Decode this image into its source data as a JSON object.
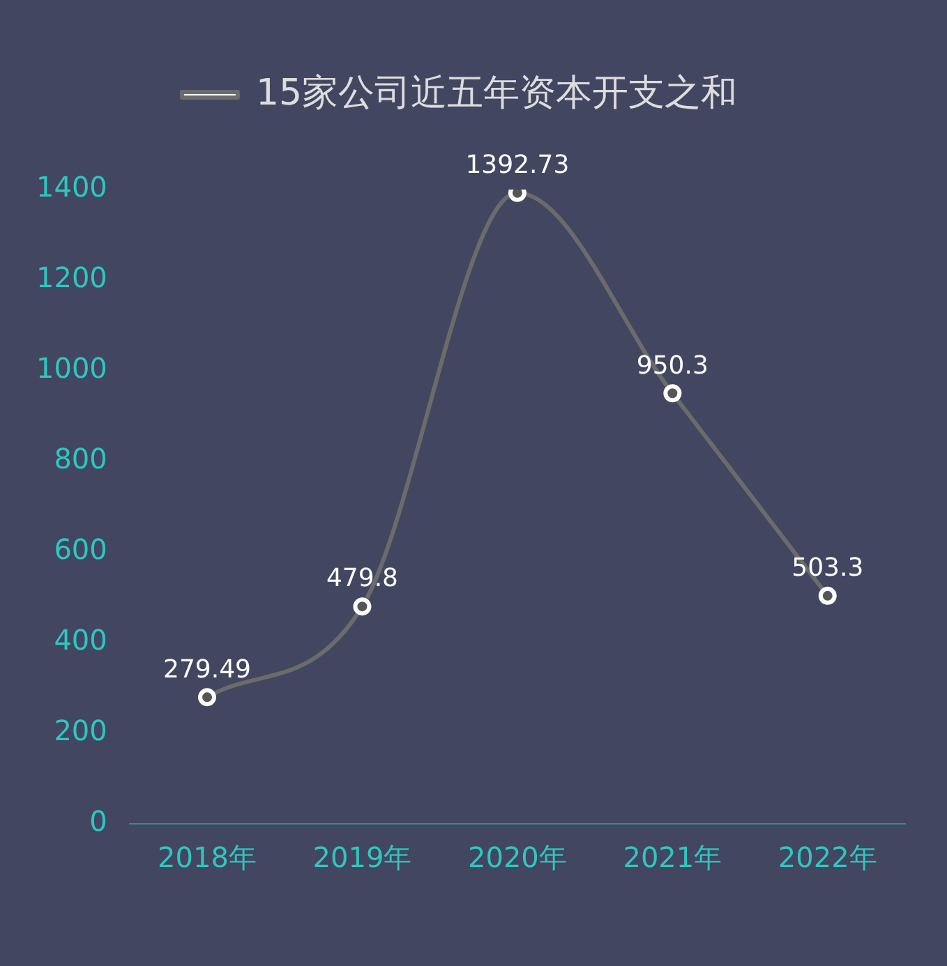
{
  "chart_data": {
    "type": "line",
    "categories": [
      "2018年",
      "2019年",
      "2020年",
      "2021年",
      "2022年"
    ],
    "series": [
      {
        "name": "15家公司近五年资本开支之和",
        "color": "#6b6b6b",
        "values": [
          279.49,
          479.8,
          1392.73,
          950.3,
          503.3
        ]
      }
    ],
    "ylim": [
      0,
      1400
    ],
    "yticks": [
      0,
      200,
      400,
      600,
      800,
      1000,
      1200,
      1400
    ],
    "grid": false,
    "legend": "top",
    "marker": "circle",
    "data_labels": true
  }
}
